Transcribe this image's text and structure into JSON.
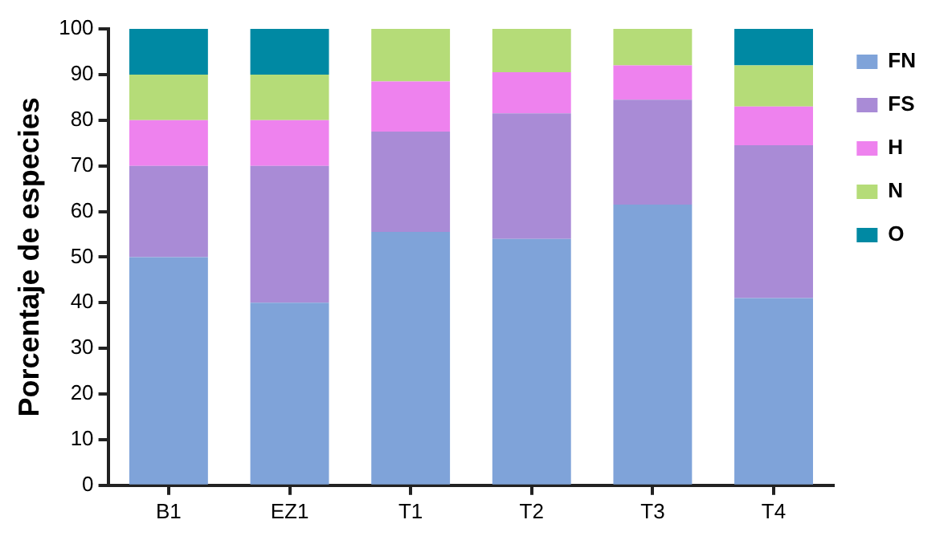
{
  "chart_data": {
    "type": "bar",
    "stacked": true,
    "ylabel": "Porcentaje de especies",
    "categories": [
      "B1",
      "EZ1",
      "T1",
      "T2",
      "T3",
      "T4"
    ],
    "series": [
      {
        "name": "FN",
        "color": "#7fa3d9",
        "values": [
          50,
          40,
          55.5,
          54,
          61.5,
          41
        ]
      },
      {
        "name": "FS",
        "color": "#a98bd6",
        "values": [
          20,
          30,
          22,
          27.5,
          23,
          33.5
        ]
      },
      {
        "name": "H",
        "color": "#ee82ee",
        "values": [
          10,
          10,
          11,
          9,
          7.5,
          8.5
        ]
      },
      {
        "name": "N",
        "color": "#b5dc78",
        "values": [
          10,
          10,
          11.5,
          9.5,
          8,
          9
        ]
      },
      {
        "name": "O",
        "color": "#0089a3",
        "values": [
          10,
          10,
          0,
          0,
          0,
          8
        ]
      }
    ],
    "ylim": [
      0,
      100
    ],
    "yticks": [
      0,
      10,
      20,
      30,
      40,
      50,
      60,
      70,
      80,
      90,
      100
    ],
    "grid": false,
    "legend": "top right"
  }
}
